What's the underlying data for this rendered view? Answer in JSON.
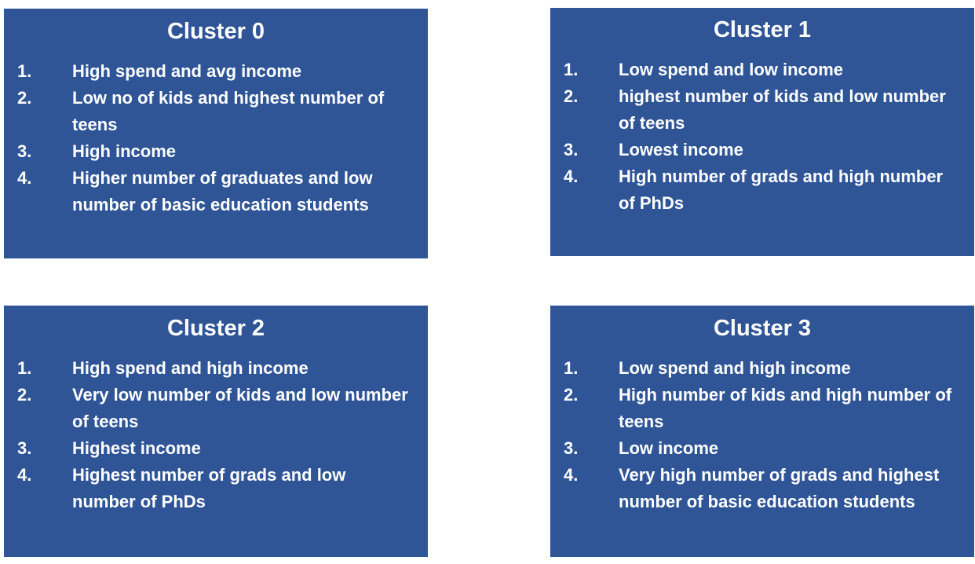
{
  "clusters": [
    {
      "title": "Cluster 0",
      "items": [
        {
          "num": "1.",
          "text": "High spend and avg income"
        },
        {
          "num": "2.",
          "text": "Low no of kids and highest number of teens"
        },
        {
          "num": "3.",
          "text": "High income"
        },
        {
          "num": "4.",
          "text": "Higher number of graduates and low number of basic education students"
        }
      ]
    },
    {
      "title": "Cluster 1",
      "items": [
        {
          "num": "1.",
          "text": "Low spend and low income"
        },
        {
          "num": "2.",
          "text": "highest number of kids and low number of teens"
        },
        {
          "num": "3.",
          "text": "Lowest  income"
        },
        {
          "num": "4.",
          "text": "High number of grads and high number of PhDs"
        }
      ]
    },
    {
      "title": "Cluster 2",
      "items": [
        {
          "num": "1.",
          "text": "High spend and high income"
        },
        {
          "num": "2.",
          "text": "Very low number of kids and low number of teens"
        },
        {
          "num": "3.",
          "text": "Highest  income"
        },
        {
          "num": "4.",
          "text": "Highest number of grads and low number of PhDs"
        }
      ]
    },
    {
      "title": "Cluster 3",
      "items": [
        {
          "num": "1.",
          "text": "Low spend and high income"
        },
        {
          "num": "2.",
          "text": "High number of kids and high number of teens"
        },
        {
          "num": "3.",
          "text": "Low  income"
        },
        {
          "num": "4.",
          "text": "Very high number of grads and highest number of basic education students"
        }
      ]
    }
  ],
  "colors": {
    "card_background": "#2f5597",
    "text": "#ffffff"
  }
}
